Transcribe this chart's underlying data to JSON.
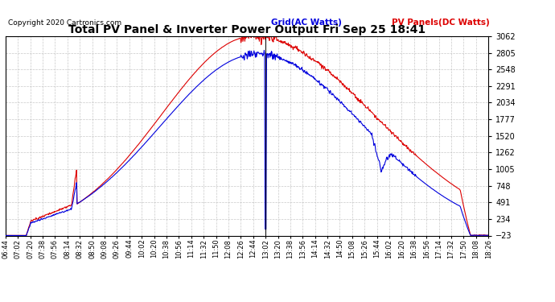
{
  "title": "Total PV Panel & Inverter Power Output Fri Sep 25 18:41",
  "copyright": "Copyright 2020 Cartronics.com",
  "legend_grid": "Grid(AC Watts)",
  "legend_pv": "PV Panels(DC Watts)",
  "yticks": [
    3062.1,
    2805.1,
    2548.0,
    2290.9,
    2033.8,
    1776.7,
    1519.6,
    1262.5,
    1005.4,
    748.3,
    491.2,
    234.1,
    -23.0
  ],
  "ymin": -23.0,
  "ymax": 3062.1,
  "xtick_labels": [
    "06:44",
    "07:02",
    "07:20",
    "07:38",
    "07:56",
    "08:14",
    "08:32",
    "08:50",
    "09:08",
    "09:26",
    "09:44",
    "10:02",
    "10:20",
    "10:38",
    "10:56",
    "11:14",
    "11:32",
    "11:50",
    "12:08",
    "12:26",
    "12:44",
    "13:02",
    "13:20",
    "13:38",
    "13:56",
    "14:14",
    "14:32",
    "14:50",
    "15:08",
    "15:26",
    "15:44",
    "16:02",
    "16:20",
    "16:38",
    "16:56",
    "17:14",
    "17:32",
    "17:50",
    "18:08",
    "18:26"
  ],
  "grid_color": "#bbbbbb",
  "bg_color": "#ffffff",
  "plot_bg_color": "#ffffff",
  "blue_color": "#0000dd",
  "red_color": "#dd0000",
  "black_color": "#000000"
}
